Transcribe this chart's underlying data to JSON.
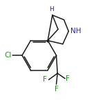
{
  "background_color": "#ffffff",
  "bond_color": "#1a1a1a",
  "atom_F_color": "#2a8c2a",
  "atom_Cl_color": "#2a8c2a",
  "atom_N_color": "#2222cc",
  "atom_H_color": "#2222cc",
  "figsize": [
    1.52,
    1.52
  ],
  "dpi": 100,
  "line_width": 1.1,
  "font_size": 7.5,
  "small_font_size": 6.5,
  "xlim": [
    0.05,
    0.95
  ],
  "ylim": [
    0.08,
    0.98
  ]
}
